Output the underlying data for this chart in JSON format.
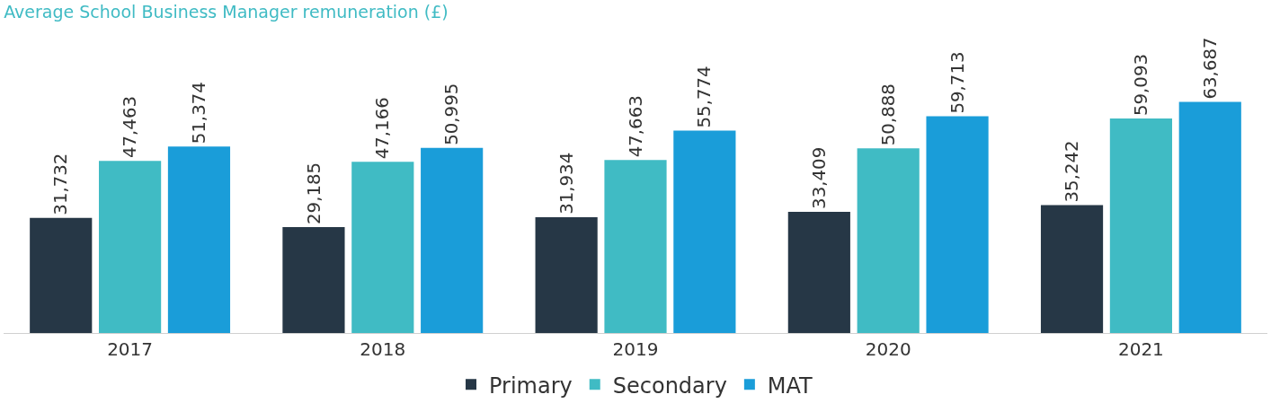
{
  "chart_data": {
    "type": "bar",
    "title": "Average School Business Manager remuneration (£)",
    "categories": [
      "2017",
      "2018",
      "2019",
      "2020",
      "2021"
    ],
    "series": [
      {
        "name": "Primary",
        "color": "#263746",
        "values": [
          31732,
          29185,
          31934,
          33409,
          35242
        ],
        "value_labels": [
          "31,732",
          "29,185",
          "31,934",
          "33,409",
          "35,242"
        ]
      },
      {
        "name": "Secondary",
        "color": "#40bbc4",
        "values": [
          47463,
          47166,
          47663,
          50888,
          59093
        ],
        "value_labels": [
          "47,463",
          "47,166",
          "47,663",
          "50,888",
          "59,093"
        ]
      },
      {
        "name": "MAT",
        "color": "#1a9dd9",
        "values": [
          51374,
          50995,
          55774,
          59713,
          63687
        ],
        "value_labels": [
          "51,374",
          "50,995",
          "55,774",
          "59,713",
          "63,687"
        ]
      }
    ],
    "tick_labels": "x",
    "grid": false,
    "legend": "bottom"
  }
}
